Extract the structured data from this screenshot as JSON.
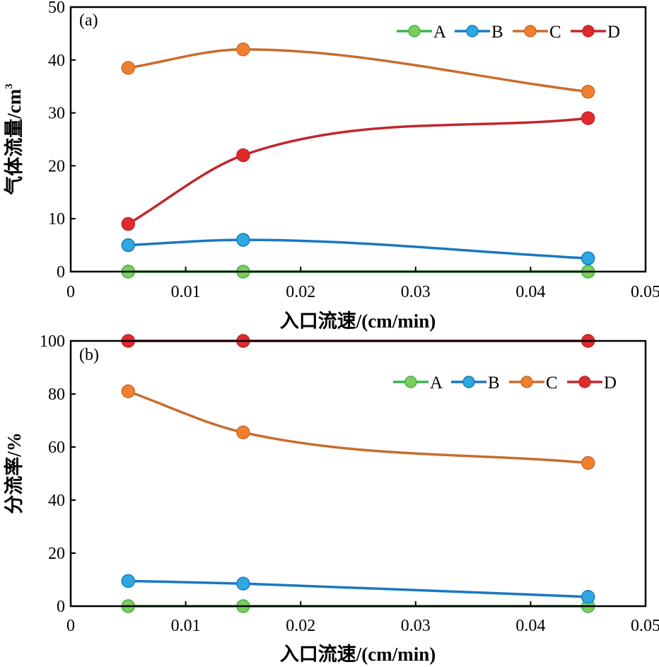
{
  "chart_data": [
    {
      "type": "line",
      "panel_label": "(a)",
      "xlabel": "入口流速/(cm/min)",
      "ylabel": "气体流量/cm",
      "ylabel_superscript": "3",
      "xlim": [
        0,
        0.05
      ],
      "ylim": [
        0,
        50
      ],
      "xticks": [
        "0",
        "0.01",
        "0.02",
        "0.03",
        "0.04",
        "0.05"
      ],
      "yticks": [
        "0",
        "10",
        "20",
        "30",
        "40",
        "50"
      ],
      "xtick_values": [
        0,
        0.01,
        0.02,
        0.03,
        0.04,
        0.05
      ],
      "ytick_values": [
        0,
        10,
        20,
        30,
        40,
        50
      ],
      "grid": false,
      "legend_position": "top-right",
      "x": [
        0.005,
        0.015,
        0.045
      ],
      "series": [
        {
          "name": "A",
          "color": "#3cb44b",
          "marker": "#7ccd5c",
          "values": [
            0,
            0,
            0
          ]
        },
        {
          "name": "B",
          "color": "#1a78c2",
          "marker": "#2ea8e0",
          "values": [
            5,
            6,
            2.5
          ]
        },
        {
          "name": "C",
          "color": "#c86c2e",
          "marker": "#f08030",
          "values": [
            38.5,
            42,
            34
          ]
        },
        {
          "name": "D",
          "color": "#c0272d",
          "marker": "#e02a2a",
          "values": [
            9,
            22,
            29
          ]
        }
      ]
    },
    {
      "type": "line",
      "panel_label": "(b)",
      "xlabel": "入口流速/(cm/min)",
      "ylabel": "分流率/%",
      "xlim": [
        0,
        0.05
      ],
      "ylim": [
        0,
        100
      ],
      "xticks": [
        "0",
        "0.01",
        "0.02",
        "0.03",
        "0.04",
        "0.05"
      ],
      "yticks": [
        "0",
        "20",
        "40",
        "60",
        "80",
        "100"
      ],
      "xtick_values": [
        0,
        0.01,
        0.02,
        0.03,
        0.04,
        0.05
      ],
      "ytick_values": [
        0,
        20,
        40,
        60,
        80,
        100
      ],
      "grid": false,
      "legend_position": "top-right",
      "x": [
        0.005,
        0.015,
        0.045
      ],
      "series": [
        {
          "name": "A",
          "color": "#3cb44b",
          "marker": "#7ccd5c",
          "values": [
            0,
            0,
            0
          ]
        },
        {
          "name": "B",
          "color": "#1a78c2",
          "marker": "#2ea8e0",
          "values": [
            9.5,
            8.5,
            3.5
          ]
        },
        {
          "name": "C",
          "color": "#c86c2e",
          "marker": "#f08030",
          "values": [
            81,
            65.5,
            54
          ]
        },
        {
          "name": "D",
          "color": "#c0272d",
          "marker": "#e02a2a",
          "values": [
            100,
            100,
            100
          ]
        }
      ]
    }
  ]
}
